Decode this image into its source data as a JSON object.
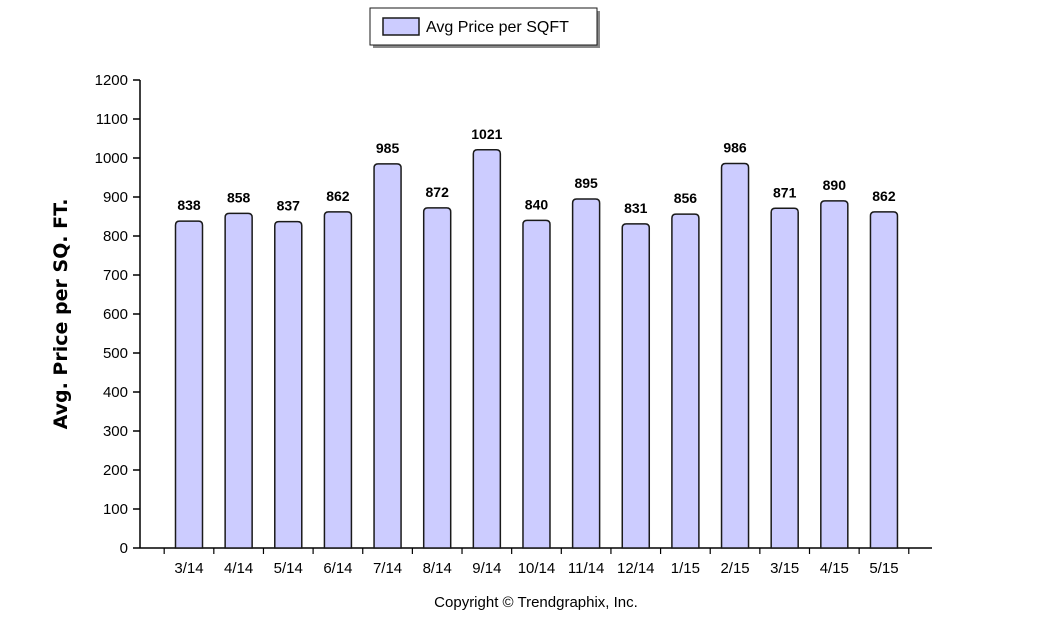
{
  "chart_data": {
    "type": "bar",
    "categories": [
      "3/14",
      "4/14",
      "5/14",
      "6/14",
      "7/14",
      "8/14",
      "9/14",
      "10/14",
      "11/14",
      "12/14",
      "1/15",
      "2/15",
      "3/15",
      "4/15",
      "5/15"
    ],
    "series": [
      {
        "name": "Avg Price per SQFT",
        "values": [
          838,
          858,
          837,
          862,
          985,
          872,
          1021,
          840,
          895,
          831,
          856,
          986,
          871,
          890,
          862
        ]
      }
    ],
    "title": "",
    "xlabel": "",
    "ylabel": "Avg. Price per SQ. FT.",
    "ylim": [
      0,
      1200
    ],
    "yticks": [
      0,
      100,
      200,
      300,
      400,
      500,
      600,
      700,
      800,
      900,
      1000,
      1100,
      1200
    ],
    "grid": false,
    "legend_position": "top-center",
    "data_labels": true,
    "bar_fill": "#ccccff",
    "bar_stroke": "#1a1a1a"
  },
  "footer": {
    "copyright": "Copyright © Trendgraphix, Inc."
  }
}
